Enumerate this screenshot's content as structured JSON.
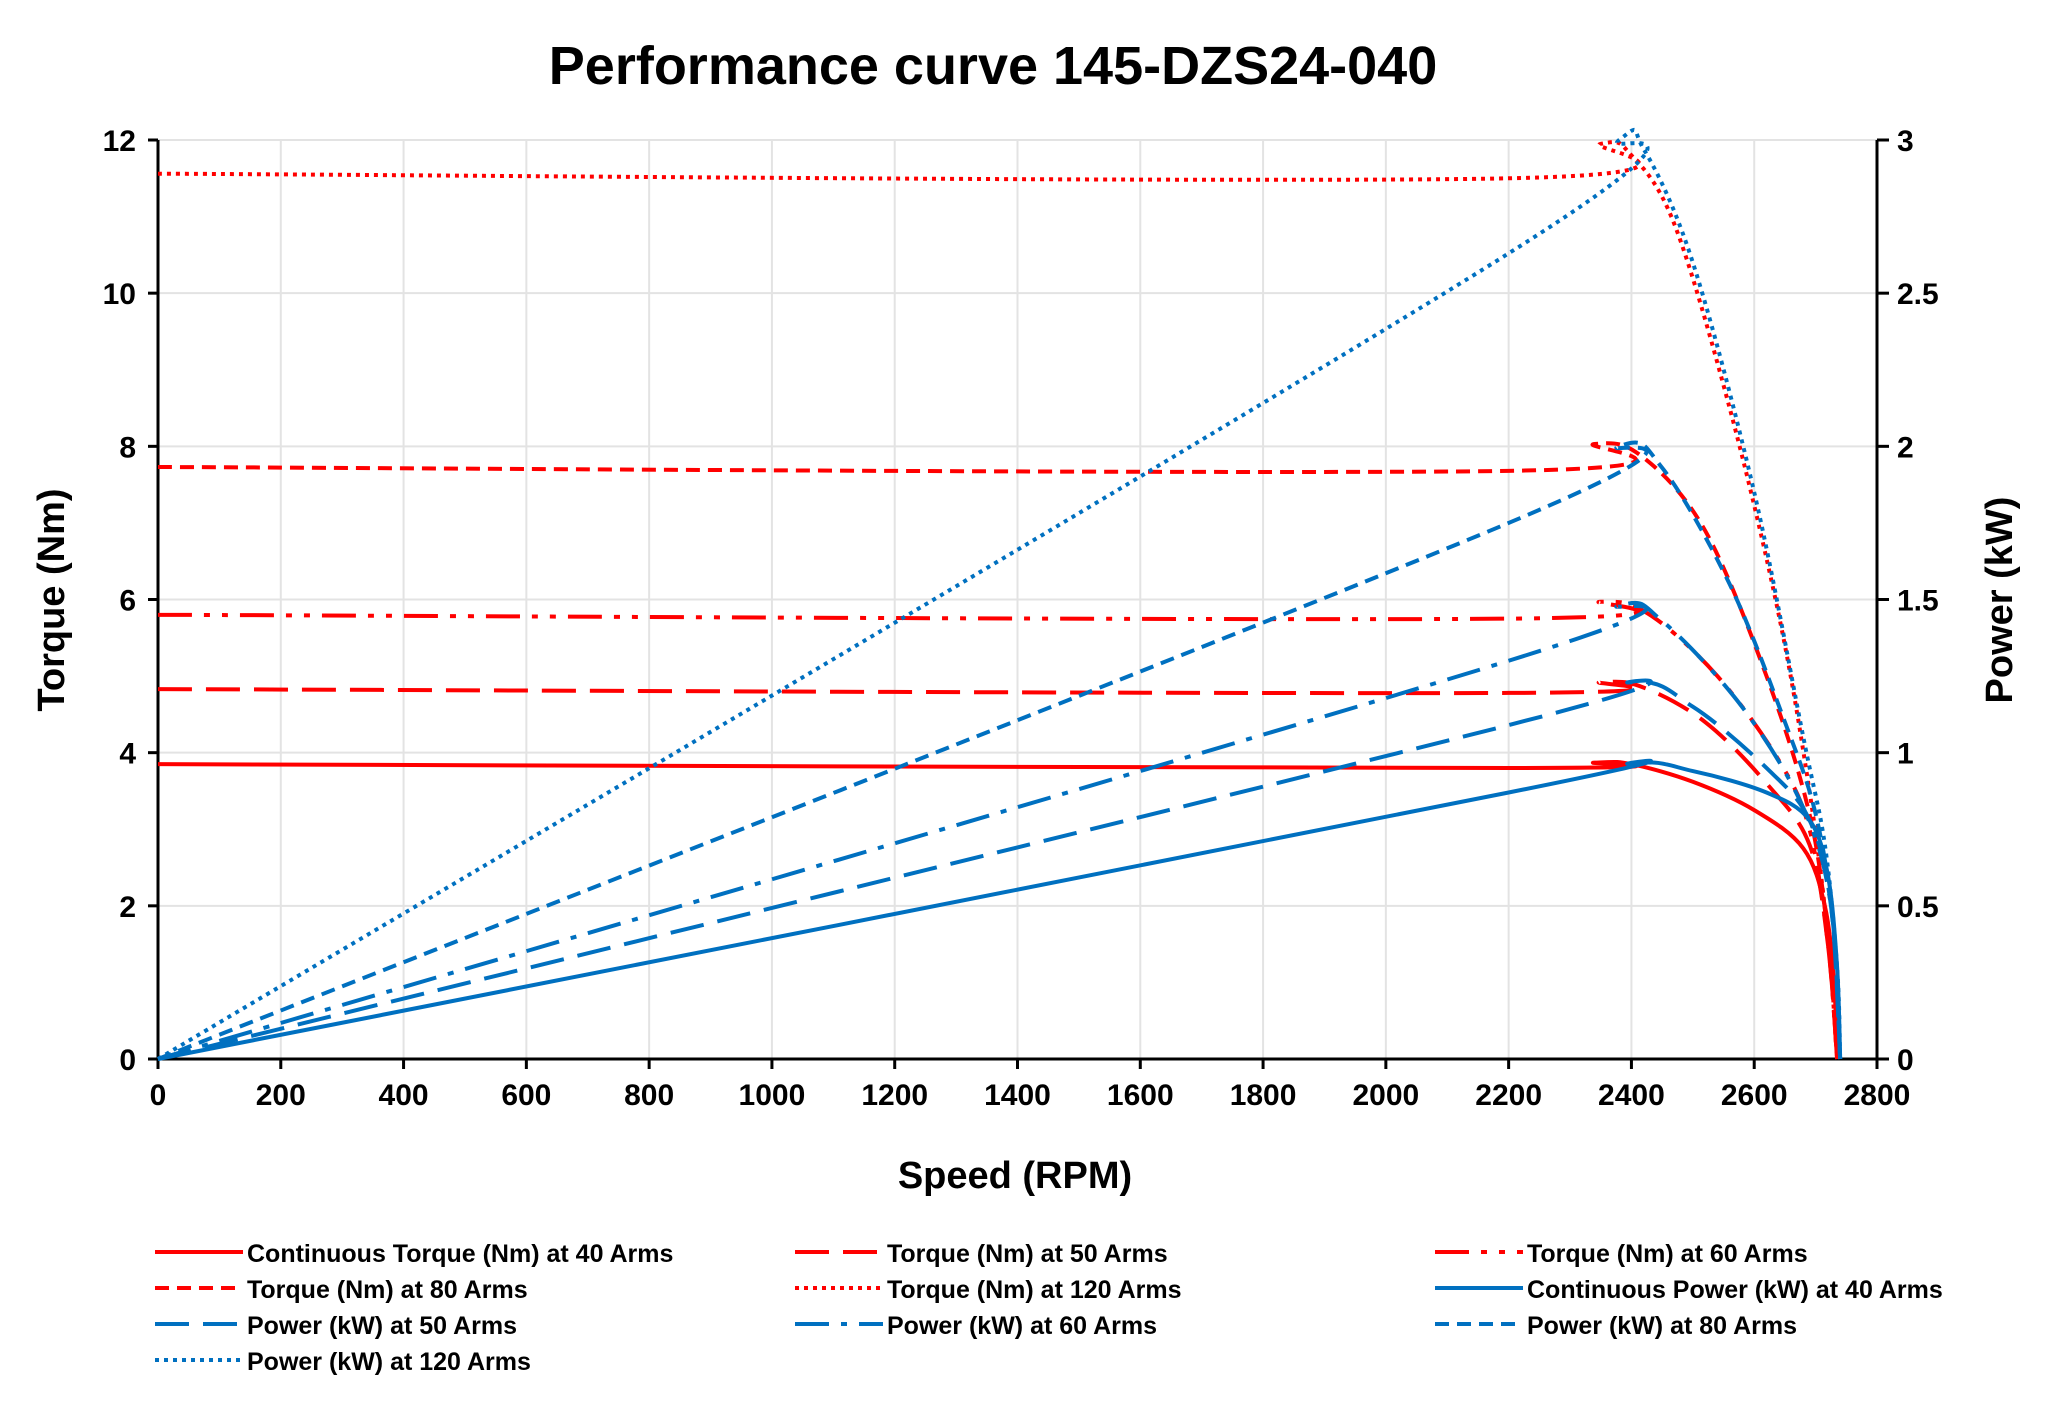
{
  "chart_data": {
    "type": "line",
    "title": "Performance curve 145-DZS24-040",
    "xlabel": "Speed (RPM)",
    "ylabel": "Torque (Nm)",
    "y2label": "Power (kW)",
    "xlim": [
      0,
      2800
    ],
    "ylim": [
      0,
      12
    ],
    "y2lim": [
      0,
      3
    ],
    "xticks": [
      "0",
      "200",
      "400",
      "600",
      "800",
      "1000",
      "1200",
      "1400",
      "1600",
      "1800",
      "2000",
      "2200",
      "2400",
      "2600",
      "2800"
    ],
    "yticks": [
      "0",
      "2",
      "4",
      "6",
      "8",
      "10",
      "12"
    ],
    "y2ticks": [
      "0",
      "0.5",
      "1",
      "1.5",
      "2",
      "2.5",
      "3"
    ],
    "grid": true,
    "legend_position": "bottom",
    "colors": {
      "torque": "#ff0000",
      "power": "#0070c0"
    },
    "series": [
      {
        "name": "Continuous Torque (Nm) at 40 Arms",
        "axis": "left",
        "color": "#ff0000",
        "dash": "solid",
        "points": [
          [
            0,
            3.85
          ],
          [
            2200,
            3.8
          ],
          [
            2340,
            3.87
          ],
          [
            2400,
            3.85
          ],
          [
            2500,
            3.62
          ],
          [
            2600,
            3.25
          ],
          [
            2680,
            2.75
          ],
          [
            2715,
            2.0
          ],
          [
            2730,
            1.0
          ],
          [
            2735,
            0
          ]
        ]
      },
      {
        "name": "Torque (Nm) at 50 Arms",
        "axis": "left",
        "color": "#ff0000",
        "dash": "long",
        "points": [
          [
            0,
            4.83
          ],
          [
            2200,
            4.78
          ],
          [
            2350,
            4.92
          ],
          [
            2420,
            4.85
          ],
          [
            2520,
            4.4
          ],
          [
            2620,
            3.6
          ],
          [
            2690,
            2.8
          ],
          [
            2720,
            1.5
          ],
          [
            2735,
            0
          ]
        ]
      },
      {
        "name": "Torque (Nm) at 60 Arms",
        "axis": "left",
        "color": "#ff0000",
        "dash": "dashdotdot",
        "points": [
          [
            0,
            5.8
          ],
          [
            2200,
            5.75
          ],
          [
            2350,
            5.97
          ],
          [
            2430,
            5.8
          ],
          [
            2540,
            5.0
          ],
          [
            2640,
            3.9
          ],
          [
            2690,
            3.0
          ],
          [
            2720,
            1.5
          ],
          [
            2735,
            0
          ]
        ]
      },
      {
        "name": "Torque (Nm) at 80 Arms",
        "axis": "left",
        "color": "#ff0000",
        "dash": "short",
        "points": [
          [
            0,
            7.73
          ],
          [
            2200,
            7.68
          ],
          [
            2340,
            8.03
          ],
          [
            2420,
            7.85
          ],
          [
            2520,
            6.9
          ],
          [
            2620,
            5.0
          ],
          [
            2690,
            3.2
          ],
          [
            2720,
            1.6
          ],
          [
            2735,
            0
          ]
        ]
      },
      {
        "name": "Torque (Nm) at 120 Arms",
        "axis": "left",
        "color": "#ff0000",
        "dash": "dot",
        "points": [
          [
            0,
            11.56
          ],
          [
            2200,
            11.5
          ],
          [
            2350,
            11.95
          ],
          [
            2400,
            11.8
          ],
          [
            2470,
            10.9
          ],
          [
            2560,
            8.5
          ],
          [
            2640,
            5.8
          ],
          [
            2690,
            3.5
          ],
          [
            2720,
            1.6
          ],
          [
            2735,
            0
          ]
        ]
      },
      {
        "name": "Continuous Power (kW) at 40 Arms",
        "axis": "right",
        "color": "#0070c0",
        "dash": "solid",
        "points": [
          [
            0,
            0
          ],
          [
            2200,
            0.87
          ],
          [
            2400,
            0.965
          ],
          [
            2500,
            0.94
          ],
          [
            2620,
            0.87
          ],
          [
            2690,
            0.78
          ],
          [
            2720,
            0.6
          ],
          [
            2735,
            0.3
          ],
          [
            2740,
            0
          ]
        ]
      },
      {
        "name": "Power (kW) at 50 Arms",
        "axis": "right",
        "color": "#0070c0",
        "dash": "long",
        "points": [
          [
            0,
            0
          ],
          [
            2200,
            1.09
          ],
          [
            2400,
            1.23
          ],
          [
            2500,
            1.15
          ],
          [
            2620,
            0.95
          ],
          [
            2690,
            0.78
          ],
          [
            2725,
            0.5
          ],
          [
            2740,
            0
          ]
        ]
      },
      {
        "name": "Power (kW) at 60 Arms",
        "axis": "right",
        "color": "#0070c0",
        "dash": "dashdot",
        "points": [
          [
            0,
            0
          ],
          [
            2200,
            1.3
          ],
          [
            2380,
            1.48
          ],
          [
            2450,
            1.43
          ],
          [
            2580,
            1.15
          ],
          [
            2680,
            0.82
          ],
          [
            2725,
            0.5
          ],
          [
            2740,
            0
          ]
        ]
      },
      {
        "name": "Power (kW) at 80 Arms",
        "axis": "right",
        "color": "#0070c0",
        "dash": "short",
        "points": [
          [
            0,
            0
          ],
          [
            2200,
            1.75
          ],
          [
            2380,
            2.0
          ],
          [
            2450,
            1.93
          ],
          [
            2560,
            1.55
          ],
          [
            2650,
            1.1
          ],
          [
            2700,
            0.8
          ],
          [
            2728,
            0.45
          ],
          [
            2740,
            0
          ]
        ]
      },
      {
        "name": "Power (kW) at 120 Arms",
        "axis": "right",
        "color": "#0070c0",
        "dash": "dot",
        "points": [
          [
            0,
            0
          ],
          [
            2200,
            2.63
          ],
          [
            2380,
            3.0
          ],
          [
            2420,
            2.97
          ],
          [
            2500,
            2.6
          ],
          [
            2600,
            1.85
          ],
          [
            2680,
            1.05
          ],
          [
            2715,
            0.7
          ],
          [
            2735,
            0.3
          ],
          [
            2740,
            0
          ]
        ]
      }
    ]
  }
}
